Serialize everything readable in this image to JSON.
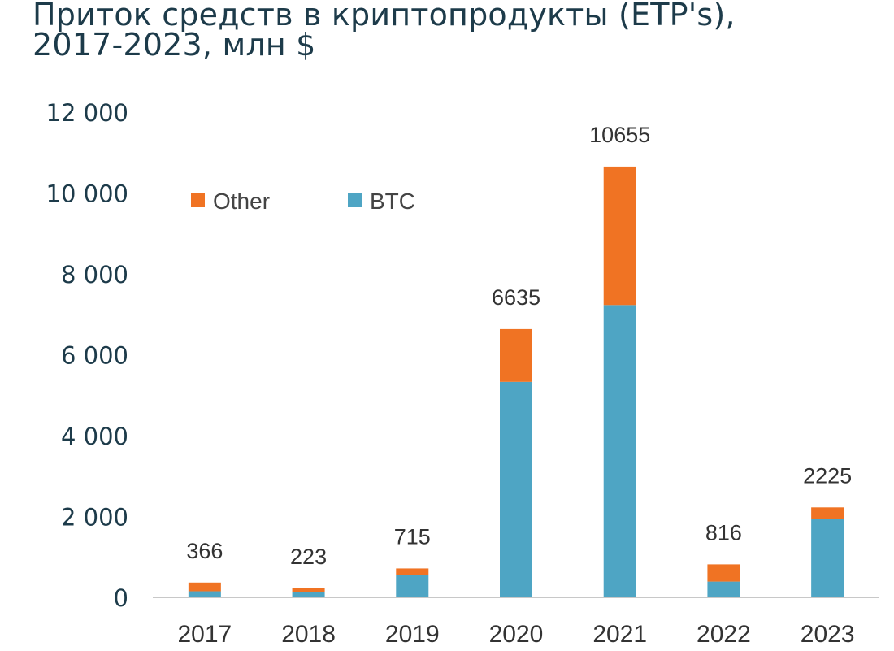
{
  "title_lines": [
    "Приток средств в криптопродукты (ETP's),",
    "2017-2023, млн $"
  ],
  "colors": {
    "Other": "#f07323",
    "BTC": "#4ea5c4",
    "axis": "#c8c8c8"
  },
  "chart_data": {
    "type": "bar",
    "stacked": true,
    "title": "Приток средств в криптопродукты (ETP's), 2017-2023, млн $",
    "categories": [
      "2017",
      "2018",
      "2019",
      "2020",
      "2021",
      "2022",
      "2023"
    ],
    "series": [
      {
        "name": "BTC",
        "values": [
          150,
          130,
          550,
          5330,
          7230,
          390,
          1930
        ]
      },
      {
        "name": "Other",
        "values": [
          216,
          93,
          165,
          1305,
          3425,
          426,
          295
        ]
      }
    ],
    "totals": [
      366,
      223,
      715,
      6635,
      10655,
      816,
      2225
    ],
    "ylim": [
      0,
      12000
    ],
    "yticks": [
      0,
      2000,
      4000,
      6000,
      8000,
      10000,
      12000
    ],
    "ytick_labels": [
      "0",
      "2 000",
      "4 000",
      "6 000",
      "8 000",
      "10 000",
      "12 000"
    ],
    "legend_order": [
      "Other",
      "BTC"
    ],
    "legend_position": "top-left",
    "grid": false
  }
}
